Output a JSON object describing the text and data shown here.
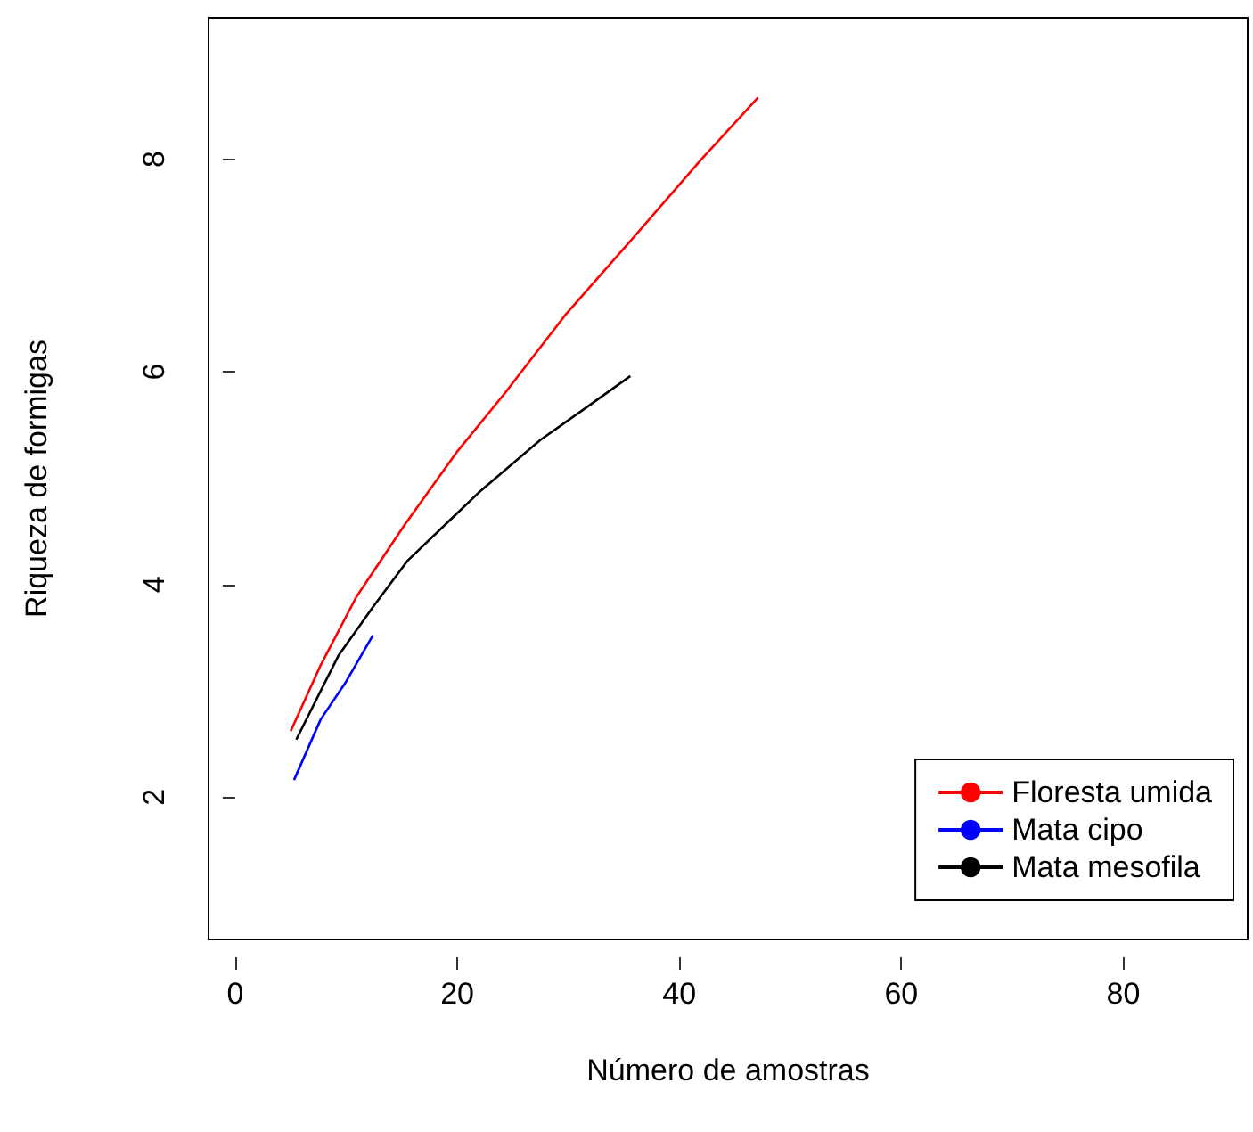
{
  "chart_data": {
    "type": "line",
    "xlabel": "Número de amostras",
    "ylabel": "Riqueza de formigas",
    "xlim": [
      -2.4,
      91.2
    ],
    "xticks": [
      0,
      20,
      40,
      60,
      80
    ],
    "ylim": [
      0.66,
      9.33
    ],
    "yticks": [
      2,
      4,
      6,
      8
    ],
    "grid": false,
    "legend": "bottom right",
    "marker": "none",
    "line_style": "solid",
    "series": [
      {
        "name": "Floresta umida",
        "color": "#ff0000",
        "x": [
          5,
          7.7,
          10.9,
          15.2,
          20,
          24.3,
          29.7,
          35.6,
          42,
          47.1
        ],
        "values": [
          2.62,
          3.24,
          3.88,
          4.55,
          5.25,
          5.8,
          6.53,
          7.23,
          8.0,
          8.58
        ]
      },
      {
        "name": "Mata cipo",
        "color": "#0000ff",
        "x": [
          5.3,
          7.7,
          9.9,
          12.4
        ],
        "values": [
          2.16,
          2.73,
          3.07,
          3.52
        ]
      },
      {
        "name": "Mata mesofila",
        "color": "#000000",
        "x": [
          5.5,
          9.3,
          12.5,
          15.5,
          21.9,
          27.5,
          31.3,
          35.6
        ],
        "values": [
          2.54,
          3.33,
          3.8,
          4.22,
          4.86,
          5.36,
          5.64,
          5.96
        ]
      }
    ]
  }
}
